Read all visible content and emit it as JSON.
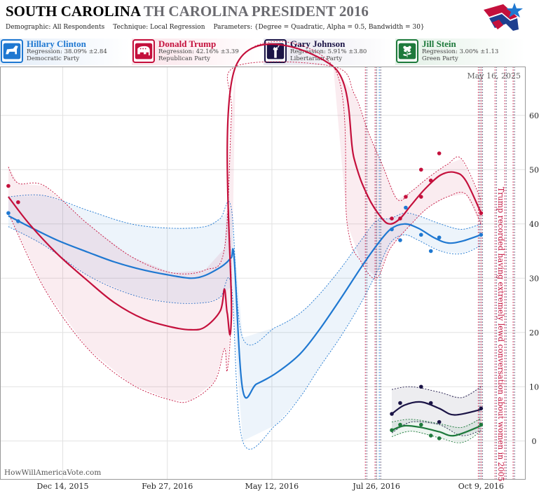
{
  "header": {
    "title_main": "SOUTH CAROLINA",
    "title_sub": "TH CAROLINA PRESIDENT 2016",
    "demographic": "Demographic: All Respondents",
    "technique": "Technique: Local Regression",
    "parameters": "Parameters: {Degree = Quadratic, Alpha = 0.5, Bandwidth = 30}"
  },
  "candidates": [
    {
      "name": "Hillary Clinton",
      "regression": "Regression: 38.09% ±2.84",
      "party": "Democratic Party",
      "color": "#1f78d1",
      "icon": "donkey-icon"
    },
    {
      "name": "Donald Trump",
      "regression": "Regression: 42.16% ±3.39",
      "party": "Republican Party",
      "color": "#c4103c",
      "icon": "elephant-icon"
    },
    {
      "name": "Gary Johnson",
      "regression": "Regression: 5.91% ±3.80",
      "party": "Libertarian Party",
      "color": "#1b1446",
      "icon": "liberty-icon"
    },
    {
      "name": "Jill Stein",
      "regression": "Regression: 3.00% ±1.13",
      "party": "Green Party",
      "color": "#1e7a3c",
      "icon": "flower-icon"
    }
  ],
  "chart_data": {
    "type": "line",
    "date_label": "May 16, 2025",
    "watermark": "HowWillAmericaVote.com",
    "annotation": "Trump recorded having extremely lewd conversation about women in 2005",
    "x_ticks": [
      "Dec 14, 2015",
      "Feb 27, 2016",
      "May 12, 2016",
      "Jul 26, 2016",
      "Oct 9, 2016"
    ],
    "x_range": [
      "2015-10-30",
      "2016-11-10"
    ],
    "ylim": [
      -7,
      69
    ],
    "y_ticks": [
      0,
      10,
      20,
      30,
      40,
      50,
      60
    ],
    "grid": true,
    "event_lines": [
      "2016-07-18",
      "2016-07-25",
      "2016-07-28",
      "2016-10-07",
      "2016-10-09",
      "2016-10-19",
      "2016-10-26",
      "2016-11-01"
    ],
    "series": [
      {
        "name": "Hillary Clinton",
        "color": "#1f78d1",
        "line": [
          [
            "2015-11-05",
            41.5
          ],
          [
            "2015-11-20",
            39.5
          ],
          [
            "2015-12-10",
            37.0
          ],
          [
            "2016-01-01",
            34.8
          ],
          [
            "2016-01-20",
            33.0
          ],
          [
            "2016-02-10",
            31.5
          ],
          [
            "2016-03-01",
            30.5
          ],
          [
            "2016-03-15",
            30.0
          ],
          [
            "2016-03-25",
            30.5
          ],
          [
            "2016-04-05",
            32.0
          ],
          [
            "2016-04-10",
            33.0
          ],
          [
            "2016-04-13",
            33.8
          ],
          [
            "2016-04-15",
            33.5
          ],
          [
            "2016-04-21",
            9.5
          ],
          [
            "2016-05-01",
            10.5
          ],
          [
            "2016-05-15",
            12.5
          ],
          [
            "2016-06-01",
            16.0
          ],
          [
            "2016-06-15",
            20.5
          ],
          [
            "2016-07-01",
            26.5
          ],
          [
            "2016-07-15",
            32.0
          ],
          [
            "2016-07-26",
            36.0
          ],
          [
            "2016-08-05",
            39.0
          ],
          [
            "2016-08-15",
            40.0
          ],
          [
            "2016-08-25",
            39.2
          ],
          [
            "2016-09-05",
            37.5
          ],
          [
            "2016-09-15",
            36.5
          ],
          [
            "2016-09-25",
            36.8
          ],
          [
            "2016-10-09",
            38.0
          ]
        ],
        "band_upper": [
          [
            "2015-11-05",
            45.0
          ],
          [
            "2015-12-01",
            45.2
          ],
          [
            "2016-01-01",
            42.5
          ],
          [
            "2016-02-01",
            40.0
          ],
          [
            "2016-03-01",
            39.2
          ],
          [
            "2016-03-25",
            39.5
          ],
          [
            "2016-04-05",
            41.0
          ],
          [
            "2016-04-13",
            42.8
          ],
          [
            "2016-04-21",
            19.0
          ],
          [
            "2016-05-15",
            21.0
          ],
          [
            "2016-06-01",
            23.5
          ],
          [
            "2016-06-15",
            27.0
          ],
          [
            "2016-07-01",
            32.0
          ],
          [
            "2016-07-15",
            37.0
          ],
          [
            "2016-07-26",
            40.5
          ],
          [
            "2016-08-05",
            41.0
          ],
          [
            "2016-08-15",
            42.0
          ],
          [
            "2016-08-25",
            41.5
          ],
          [
            "2016-09-10",
            40.0
          ],
          [
            "2016-09-25",
            39.0
          ],
          [
            "2016-10-09",
            40.0
          ]
        ],
        "band_lower": [
          [
            "2015-11-05",
            39.5
          ],
          [
            "2015-12-01",
            36.0
          ],
          [
            "2016-01-01",
            30.5
          ],
          [
            "2016-02-01",
            27.0
          ],
          [
            "2016-03-01",
            25.5
          ],
          [
            "2016-03-25",
            25.5
          ],
          [
            "2016-04-05",
            26.5
          ],
          [
            "2016-04-13",
            28.5
          ],
          [
            "2016-04-21",
            0.0
          ],
          [
            "2016-05-15",
            3.0
          ],
          [
            "2016-06-01",
            8.0
          ],
          [
            "2016-06-15",
            13.5
          ],
          [
            "2016-07-01",
            19.5
          ],
          [
            "2016-07-15",
            25.5
          ],
          [
            "2016-07-26",
            31.0
          ],
          [
            "2016-08-05",
            36.5
          ],
          [
            "2016-08-15",
            38.0
          ],
          [
            "2016-08-25",
            37.0
          ],
          [
            "2016-09-10",
            35.0
          ],
          [
            "2016-09-25",
            34.5
          ],
          [
            "2016-10-09",
            36.0
          ]
        ],
        "points": [
          [
            "2015-11-05",
            42
          ],
          [
            "2015-11-12",
            40.5
          ],
          [
            "2016-08-06",
            39
          ],
          [
            "2016-08-12",
            37
          ],
          [
            "2016-08-16",
            43
          ],
          [
            "2016-08-27",
            38
          ],
          [
            "2016-09-03",
            35
          ],
          [
            "2016-09-09",
            37.5
          ],
          [
            "2016-10-09",
            38
          ]
        ]
      },
      {
        "name": "Donald Trump",
        "color": "#c4103c",
        "line": [
          [
            "2015-11-05",
            45.0
          ],
          [
            "2015-11-20",
            40.0
          ],
          [
            "2015-12-10",
            34.5
          ],
          [
            "2016-01-01",
            29.5
          ],
          [
            "2016-01-20",
            25.5
          ],
          [
            "2016-02-10",
            22.5
          ],
          [
            "2016-03-01",
            21.0
          ],
          [
            "2016-03-15",
            20.5
          ],
          [
            "2016-03-25",
            21.0
          ],
          [
            "2016-04-05",
            24.0
          ],
          [
            "2016-04-08",
            28.0
          ],
          [
            "2016-04-10",
            23.5
          ],
          [
            "2016-04-13",
            23.0
          ],
          [
            "2016-04-16",
            70.0
          ],
          [
            "2016-06-25",
            70.0
          ],
          [
            "2016-07-10",
            52.0
          ],
          [
            "2016-07-20",
            45.0
          ],
          [
            "2016-07-30",
            41.0
          ],
          [
            "2016-08-05",
            40.0
          ],
          [
            "2016-08-12",
            41.0
          ],
          [
            "2016-08-20",
            43.5
          ],
          [
            "2016-08-30",
            46.5
          ],
          [
            "2016-09-10",
            49.0
          ],
          [
            "2016-09-20",
            49.5
          ],
          [
            "2016-09-28",
            48.0
          ],
          [
            "2016-10-09",
            42.0
          ]
        ],
        "band_upper": [
          [
            "2015-11-05",
            50.5
          ],
          [
            "2015-11-12",
            47.5
          ],
          [
            "2015-12-01",
            47.0
          ],
          [
            "2016-01-01",
            40.0
          ],
          [
            "2016-02-01",
            34.0
          ],
          [
            "2016-03-01",
            31.0
          ],
          [
            "2016-03-25",
            31.5
          ],
          [
            "2016-04-08",
            35.5
          ],
          [
            "2016-04-13",
            60.0
          ],
          [
            "2016-04-16",
            70.0
          ],
          [
            "2016-06-25",
            70.0
          ],
          [
            "2016-07-10",
            64.0
          ],
          [
            "2016-07-20",
            57.0
          ],
          [
            "2016-07-30",
            51.0
          ],
          [
            "2016-08-10",
            44.5
          ],
          [
            "2016-08-20",
            46.0
          ],
          [
            "2016-09-01",
            48.5
          ],
          [
            "2016-09-15",
            51.0
          ],
          [
            "2016-09-25",
            52.0
          ],
          [
            "2016-10-09",
            44.5
          ]
        ],
        "band_lower": [
          [
            "2015-11-05",
            42.0
          ],
          [
            "2015-12-01",
            28.0
          ],
          [
            "2016-01-01",
            17.0
          ],
          [
            "2016-02-01",
            10.5
          ],
          [
            "2016-03-01",
            7.5
          ],
          [
            "2016-03-15",
            7.5
          ],
          [
            "2016-04-01",
            11.0
          ],
          [
            "2016-04-08",
            17.0
          ],
          [
            "2016-04-10",
            13.0
          ],
          [
            "2016-04-13",
            25.0
          ],
          [
            "2016-04-16",
            70.0
          ],
          [
            "2016-06-25",
            70.0
          ],
          [
            "2016-07-05",
            40.0
          ],
          [
            "2016-07-15",
            33.0
          ],
          [
            "2016-07-26",
            30.0
          ],
          [
            "2016-08-05",
            35.5
          ],
          [
            "2016-08-20",
            40.0
          ],
          [
            "2016-09-01",
            43.0
          ],
          [
            "2016-09-15",
            45.0
          ],
          [
            "2016-09-28",
            45.5
          ],
          [
            "2016-10-09",
            40.0
          ]
        ],
        "points": [
          [
            "2015-11-05",
            47
          ],
          [
            "2015-11-12",
            44
          ],
          [
            "2016-08-06",
            41
          ],
          [
            "2016-08-12",
            41
          ],
          [
            "2016-08-16",
            45
          ],
          [
            "2016-08-27",
            50
          ],
          [
            "2016-08-27",
            45
          ],
          [
            "2016-09-03",
            48
          ],
          [
            "2016-09-09",
            53
          ],
          [
            "2016-10-09",
            42
          ]
        ]
      },
      {
        "name": "Gary Johnson",
        "color": "#1b1446",
        "line": [
          [
            "2016-08-06",
            5.0
          ],
          [
            "2016-08-15",
            6.6
          ],
          [
            "2016-08-27",
            7.2
          ],
          [
            "2016-09-09",
            6.0
          ],
          [
            "2016-09-20",
            4.8
          ],
          [
            "2016-10-09",
            5.8
          ]
        ],
        "band_upper": [
          [
            "2016-08-06",
            9.5
          ],
          [
            "2016-08-20",
            10.0
          ],
          [
            "2016-09-09",
            9.0
          ],
          [
            "2016-09-25",
            8.0
          ],
          [
            "2016-10-09",
            10.0
          ]
        ],
        "band_lower": [
          [
            "2016-08-06",
            1.5
          ],
          [
            "2016-08-20",
            3.5
          ],
          [
            "2016-09-09",
            3.0
          ],
          [
            "2016-09-25",
            1.0
          ],
          [
            "2016-10-09",
            2.0
          ]
        ],
        "points": [
          [
            "2016-08-06",
            5
          ],
          [
            "2016-08-12",
            7
          ],
          [
            "2016-08-27",
            10
          ],
          [
            "2016-09-03",
            7
          ],
          [
            "2016-09-09",
            3.5
          ],
          [
            "2016-10-09",
            6
          ]
        ]
      },
      {
        "name": "Jill Stein",
        "color": "#1e7a3c",
        "line": [
          [
            "2016-08-06",
            2.0
          ],
          [
            "2016-08-15",
            2.8
          ],
          [
            "2016-08-27",
            2.5
          ],
          [
            "2016-09-09",
            1.7
          ],
          [
            "2016-09-20",
            1.0
          ],
          [
            "2016-10-09",
            2.8
          ]
        ],
        "band_upper": [
          [
            "2016-08-06",
            3.5
          ],
          [
            "2016-08-20",
            4.0
          ],
          [
            "2016-09-09",
            3.2
          ],
          [
            "2016-09-25",
            2.5
          ],
          [
            "2016-10-09",
            4.2
          ]
        ],
        "band_lower": [
          [
            "2016-08-06",
            0.8
          ],
          [
            "2016-08-20",
            1.8
          ],
          [
            "2016-09-09",
            0.6
          ],
          [
            "2016-09-25",
            -0.3
          ],
          [
            "2016-10-09",
            1.8
          ]
        ],
        "points": [
          [
            "2016-08-06",
            2
          ],
          [
            "2016-08-12",
            3
          ],
          [
            "2016-08-27",
            3
          ],
          [
            "2016-09-03",
            1
          ],
          [
            "2016-09-09",
            0.5
          ],
          [
            "2016-10-09",
            3
          ]
        ]
      }
    ]
  }
}
